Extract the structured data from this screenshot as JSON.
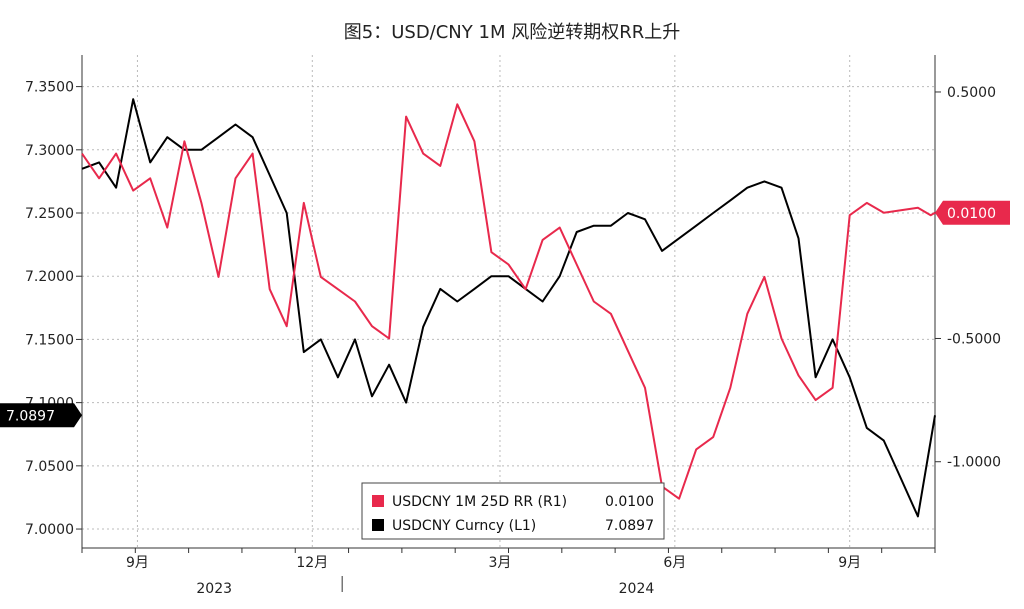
{
  "title": "图5：USD/CNY 1M 风险逆转期权RR上升",
  "colors": {
    "rr": "#e8294c",
    "spot": "#000000",
    "grid": "#bbbbbb",
    "axis": "#333333"
  },
  "chart_data": {
    "type": "line",
    "title": "图5：USD/CNY 1M 风险逆转期权RR上升",
    "x_ticks": [
      "9月",
      "12月",
      "3月",
      "6月",
      "9月"
    ],
    "x_years": [
      "2023",
      "2024"
    ],
    "left_axis": {
      "ticks": [
        "7.3500",
        "7.3000",
        "7.2500",
        "7.2000",
        "7.1500",
        "7.1000",
        "7.0500",
        "7.0000"
      ],
      "ylim": [
        6.985,
        7.375
      ]
    },
    "right_axis": {
      "ticks": [
        "0.5000",
        "-0.5000",
        "-1.0000"
      ],
      "ylim": [
        -1.35,
        0.65
      ]
    },
    "last_value_tags": {
      "left": "7.0897",
      "right": "0.0100"
    },
    "legend": [
      {
        "name": "USDCNY 1M 25D RR (R1)",
        "value": "0.0100",
        "color": "#e8294c"
      },
      {
        "name": "USDCNY Curncy (L1)",
        "value": "7.0897",
        "color": "#000000"
      }
    ],
    "series": [
      {
        "name": "USDCNY Curncy (L1)",
        "axis": "left",
        "x": [
          0,
          2,
          4,
          6,
          8,
          10,
          12,
          14,
          16,
          18,
          20,
          22,
          24,
          26,
          28,
          30,
          32,
          34,
          36,
          38,
          40,
          42,
          44,
          46,
          48,
          50,
          52,
          54,
          56,
          58,
          60,
          62,
          64,
          66,
          68,
          70,
          72,
          74,
          76,
          78,
          80,
          82,
          84,
          86,
          88,
          90,
          92,
          94,
          96,
          98,
          100
        ],
        "y": [
          7.285,
          7.29,
          7.27,
          7.34,
          7.29,
          7.31,
          7.3,
          7.3,
          7.31,
          7.32,
          7.31,
          7.28,
          7.25,
          7.14,
          7.15,
          7.12,
          7.15,
          7.105,
          7.13,
          7.1,
          7.16,
          7.19,
          7.18,
          7.19,
          7.2,
          7.2,
          7.19,
          7.18,
          7.2,
          7.235,
          7.24,
          7.24,
          7.25,
          7.245,
          7.22,
          7.23,
          7.24,
          7.25,
          7.26,
          7.27,
          7.275,
          7.27,
          7.23,
          7.12,
          7.15,
          7.12,
          7.08,
          7.07,
          7.04,
          7.01,
          7.09
        ]
      },
      {
        "name": "USDCNY 1M 25D RR (R1)",
        "axis": "right",
        "x": [
          0,
          2,
          4,
          6,
          8,
          10,
          12,
          14,
          16,
          18,
          20,
          22,
          24,
          26,
          28,
          30,
          32,
          34,
          36,
          38,
          40,
          42,
          44,
          46,
          48,
          50,
          52,
          54,
          56,
          58,
          60,
          62,
          64,
          66,
          68,
          70,
          72,
          74,
          76,
          78,
          80,
          82,
          84,
          86,
          88,
          90,
          92,
          94,
          96,
          98,
          99.5,
          100
        ],
        "y": [
          0.25,
          0.15,
          0.25,
          0.1,
          0.15,
          -0.05,
          0.3,
          0.05,
          -0.25,
          0.15,
          0.25,
          -0.3,
          -0.45,
          0.05,
          -0.25,
          -0.3,
          -0.35,
          -0.45,
          -0.5,
          0.4,
          0.25,
          0.2,
          0.45,
          0.3,
          -0.15,
          -0.2,
          -0.3,
          -0.1,
          -0.05,
          -0.2,
          -0.35,
          -0.4,
          -0.55,
          -0.7,
          -1.1,
          -1.15,
          -0.95,
          -0.9,
          -0.7,
          -0.4,
          -0.25,
          -0.5,
          -0.65,
          -0.75,
          -0.7,
          0.0,
          0.05,
          0.01,
          0.02,
          0.03,
          0.0,
          0.01
        ]
      }
    ]
  }
}
